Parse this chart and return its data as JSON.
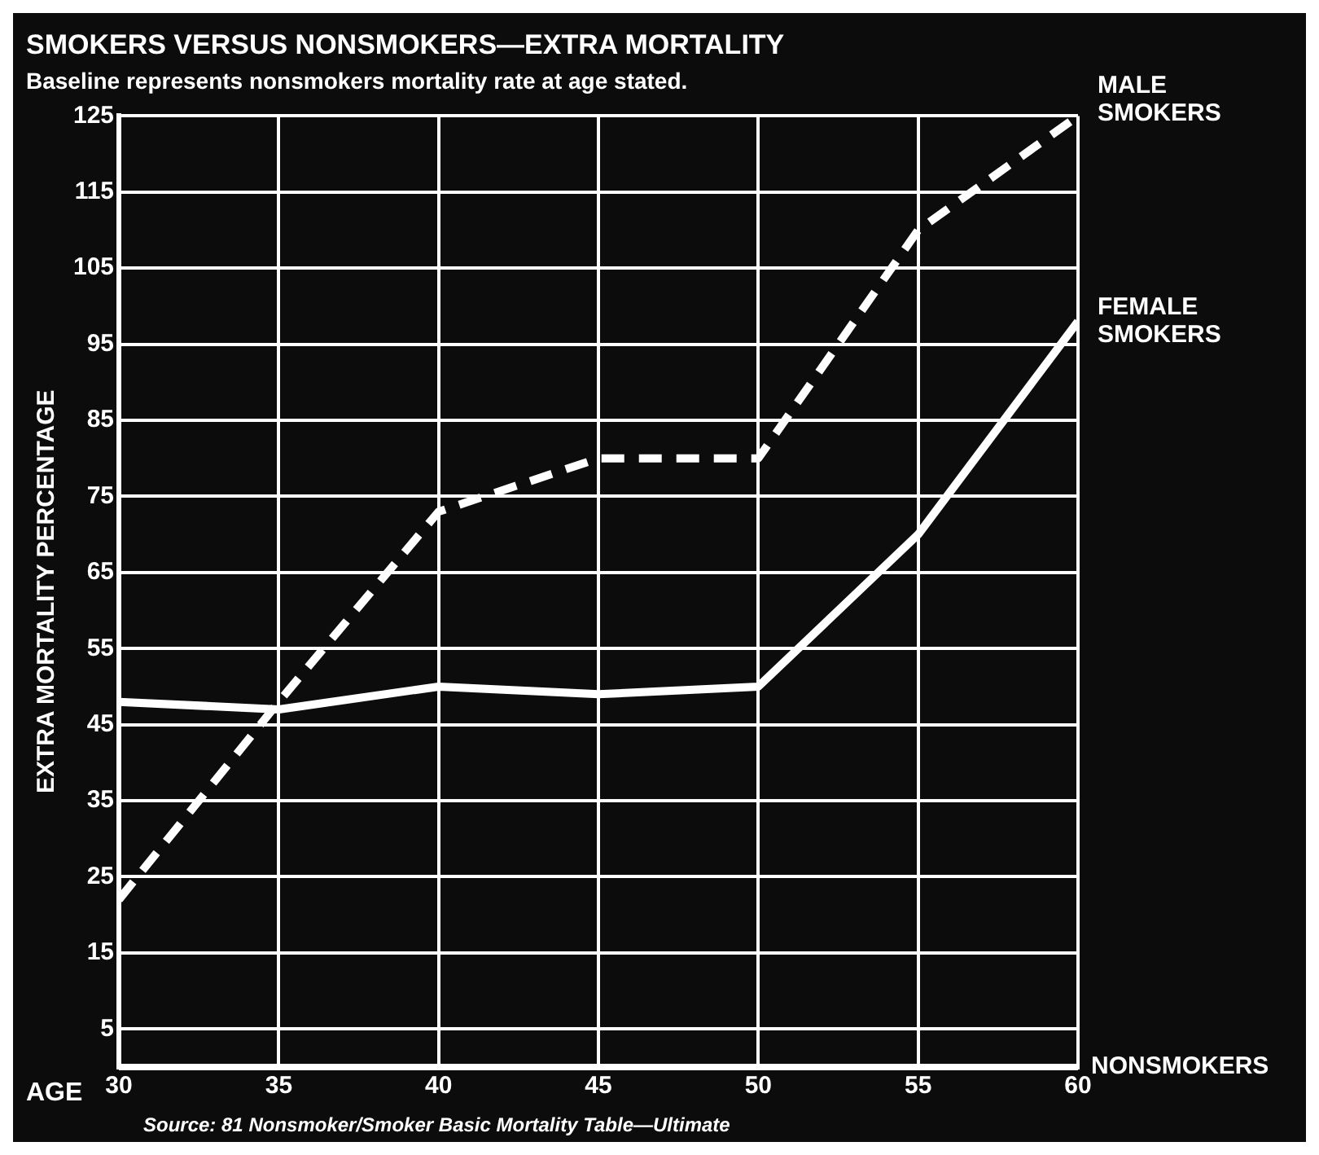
{
  "chart_data": {
    "type": "line",
    "title": "SMOKERS VERSUS NONSMOKERS—EXTRA MORTALITY",
    "subtitle": "Baseline represents nonsmokers mortality rate at age stated.",
    "xlabel": "AGE",
    "ylabel": "EXTRA MORTALITY PERCENTAGE",
    "x": [
      30,
      35,
      40,
      45,
      50,
      55,
      60
    ],
    "series": [
      {
        "name": "MALE SMOKERS",
        "color": "#ffffff",
        "line_style": "dashed",
        "values": [
          22,
          48,
          73,
          80,
          80,
          110,
          125
        ]
      },
      {
        "name": "FEMALE SMOKERS",
        "color": "#ffffff",
        "line_style": "solid",
        "values": [
          48,
          47,
          50,
          49,
          50,
          70,
          98
        ]
      }
    ],
    "xlim": [
      30,
      60
    ],
    "xticks": [
      30,
      35,
      40,
      45,
      50,
      55,
      60
    ],
    "ylim": [
      0,
      125
    ],
    "yticks": [
      5,
      15,
      25,
      35,
      45,
      55,
      65,
      75,
      85,
      95,
      105,
      115,
      125
    ],
    "grid": true,
    "marker": "none",
    "legend": false,
    "ref_lines": [
      {
        "axis": "y",
        "value": 0,
        "label": "NONSMOKERS"
      }
    ],
    "annotations": [
      "Source: 81 Nonsmoker/Smoker Basic Mortality Table—Ultimate"
    ]
  }
}
